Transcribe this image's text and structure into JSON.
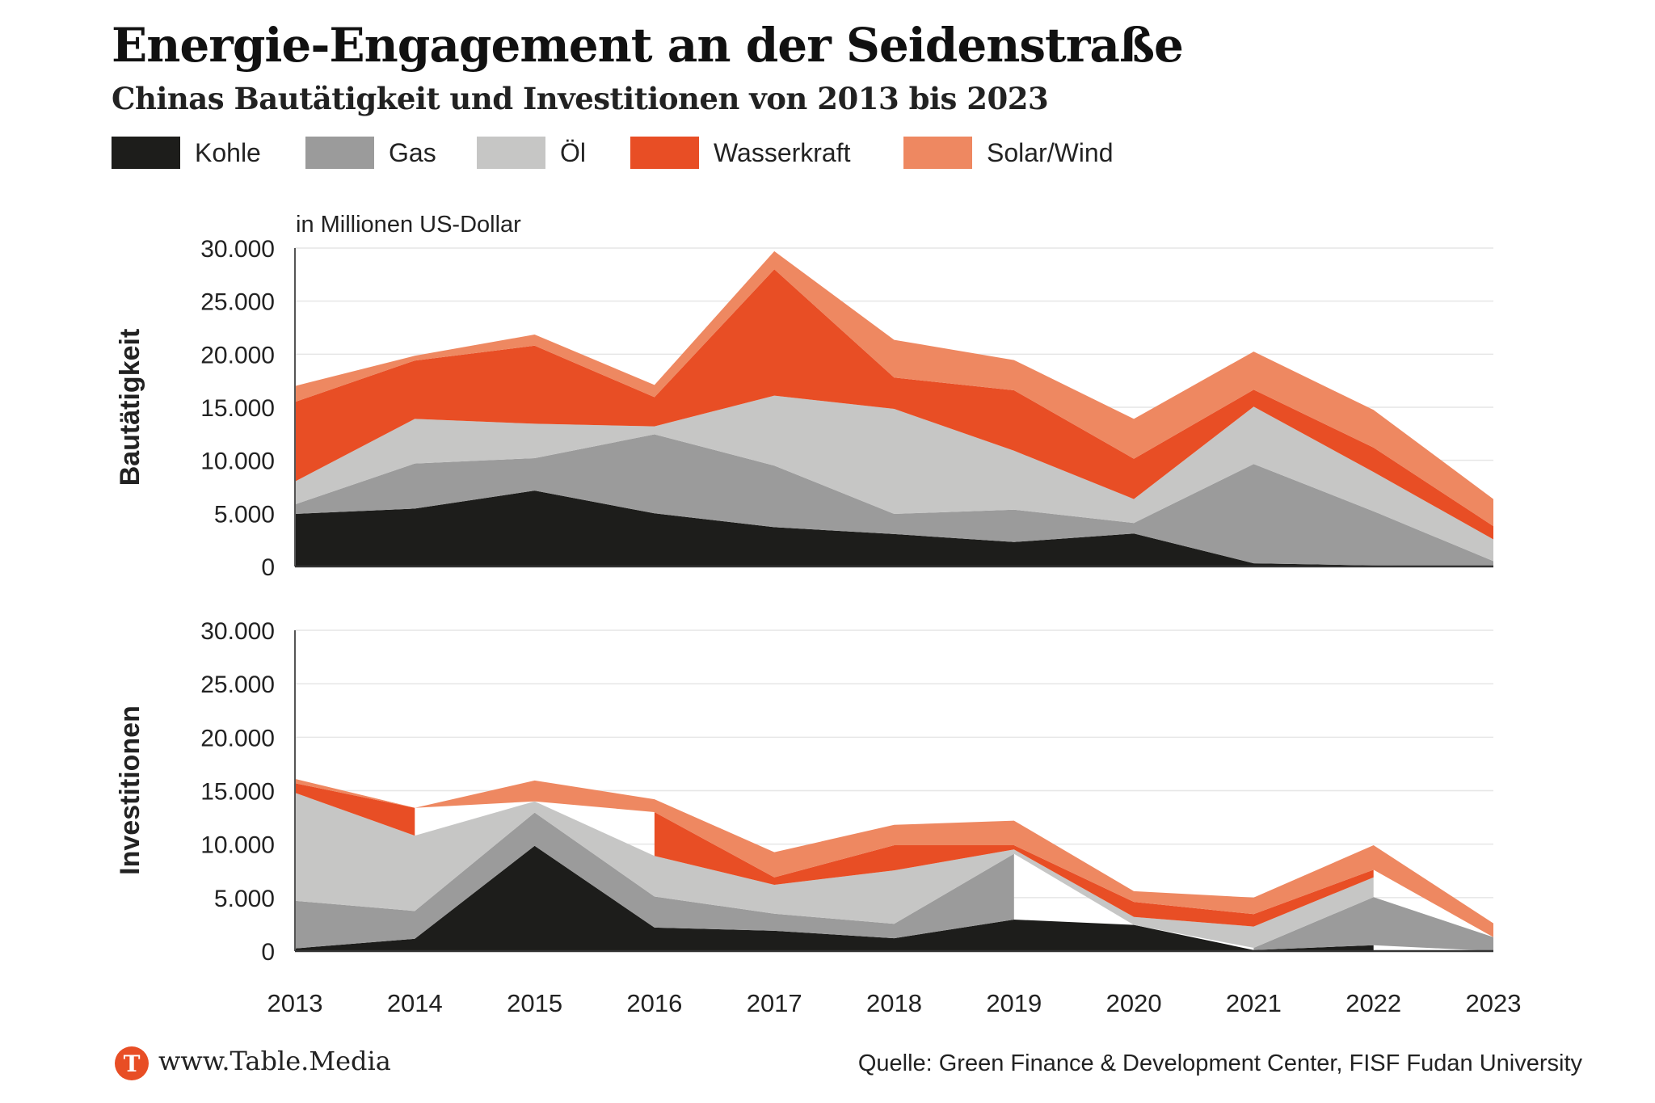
{
  "header": {
    "title": "Energie-Engagement an der Seidenstraße",
    "subtitle": "Chinas Bautätigkeit und Investitionen von 2013 bis 2023"
  },
  "legend": [
    {
      "key": "kohle",
      "label": "Kohle",
      "color": "#1d1d1b"
    },
    {
      "key": "gas",
      "label": "Gas",
      "color": "#9b9b9b"
    },
    {
      "key": "oel",
      "label": "Öl",
      "color": "#c6c6c5"
    },
    {
      "key": "wasserkraft",
      "label": "Wasserkraft",
      "color": "#e84e25"
    },
    {
      "key": "solar_wind",
      "label": "Solar/Wind",
      "color": "#ee8861"
    }
  ],
  "unit_label": "in Millionen US-Dollar",
  "footer": {
    "logo_letter": "T",
    "logo_color": "#e84e25",
    "brand": "www.Table.Media",
    "source": "Quelle: Green Finance & Development Center, FISF Fudan University"
  },
  "chart_data": [
    {
      "type": "area",
      "stacked": true,
      "title": "Bautätigkeit",
      "ylabel": "Bautätigkeit",
      "xlabel": "",
      "unit": "in Millionen US-Dollar",
      "x": [
        2013,
        2014,
        2015,
        2016,
        2017,
        2018,
        2019,
        2020,
        2021,
        2022,
        2023
      ],
      "ylim": [
        0,
        30000
      ],
      "yticks": [
        0,
        5000,
        10000,
        15000,
        20000,
        25000,
        30000
      ],
      "ytick_labels": [
        "0",
        "5.000",
        "10.000",
        "15.000",
        "20.000",
        "25.000",
        "30.000"
      ],
      "grid": true,
      "legend_position": "top-left",
      "series": [
        {
          "name": "Kohle",
          "values": [
            4950,
            5450,
            7150,
            5000,
            3700,
            3050,
            2300,
            3100,
            300,
            100,
            0
          ]
        },
        {
          "name": "Gas",
          "values": [
            900,
            4250,
            3050,
            7450,
            5800,
            1900,
            3050,
            1000,
            9350,
            5100,
            500
          ]
        },
        {
          "name": "Öl",
          "values": [
            2150,
            4200,
            3250,
            750,
            6600,
            9900,
            5550,
            2250,
            5400,
            3700,
            2050
          ]
        },
        {
          "name": "Wasserkraft",
          "values": [
            7500,
            5500,
            7350,
            2750,
            11900,
            2950,
            5700,
            3800,
            1600,
            2300,
            1250
          ]
        },
        {
          "name": "Solar/Wind",
          "values": [
            1500,
            450,
            1050,
            1150,
            1700,
            3550,
            2850,
            3750,
            3600,
            3550,
            2550
          ]
        }
      ]
    },
    {
      "type": "area",
      "stacked": true,
      "title": "Investitionen",
      "ylabel": "Investitionen",
      "xlabel": "",
      "x": [
        2013,
        2014,
        2015,
        2016,
        2017,
        2018,
        2019,
        2020,
        2021,
        2022,
        2023
      ],
      "xtick_labels": [
        "2013",
        "2014",
        "2015",
        "2016",
        "2017",
        "2018",
        "2019",
        "2020",
        "2021",
        "2022",
        "2023"
      ],
      "ylim": [
        0,
        30000
      ],
      "yticks": [
        0,
        5000,
        10000,
        15000,
        20000,
        25000,
        30000
      ],
      "ytick_labels": [
        "0",
        "5.000",
        "10.000",
        "15.000",
        "20.000",
        "25.000",
        "30.000"
      ],
      "grid": true,
      "note": "null = no value for that year (area segment omitted)",
      "series": [
        {
          "name": "Kohle",
          "values": [
            250,
            1150,
            9850,
            2200,
            1900,
            1200,
            2950,
            2450,
            100,
            550,
            null
          ]
        },
        {
          "name": "Gas",
          "values": [
            4450,
            2600,
            3100,
            2900,
            1600,
            1350,
            6150,
            null,
            200,
            4500,
            1300
          ]
        },
        {
          "name": "Öl",
          "values": [
            10100,
            7050,
            1050,
            3800,
            2700,
            5000,
            400,
            750,
            2000,
            1850,
            null
          ]
        },
        {
          "name": "Wasserkraft",
          "values": [
            900,
            2600,
            null,
            4100,
            700,
            2350,
            400,
            1400,
            1150,
            700,
            null
          ]
        },
        {
          "name": "Solar/Wind",
          "values": [
            400,
            0,
            1950,
            1200,
            2350,
            1900,
            2300,
            1000,
            1550,
            2300,
            1300
          ]
        }
      ]
    }
  ]
}
